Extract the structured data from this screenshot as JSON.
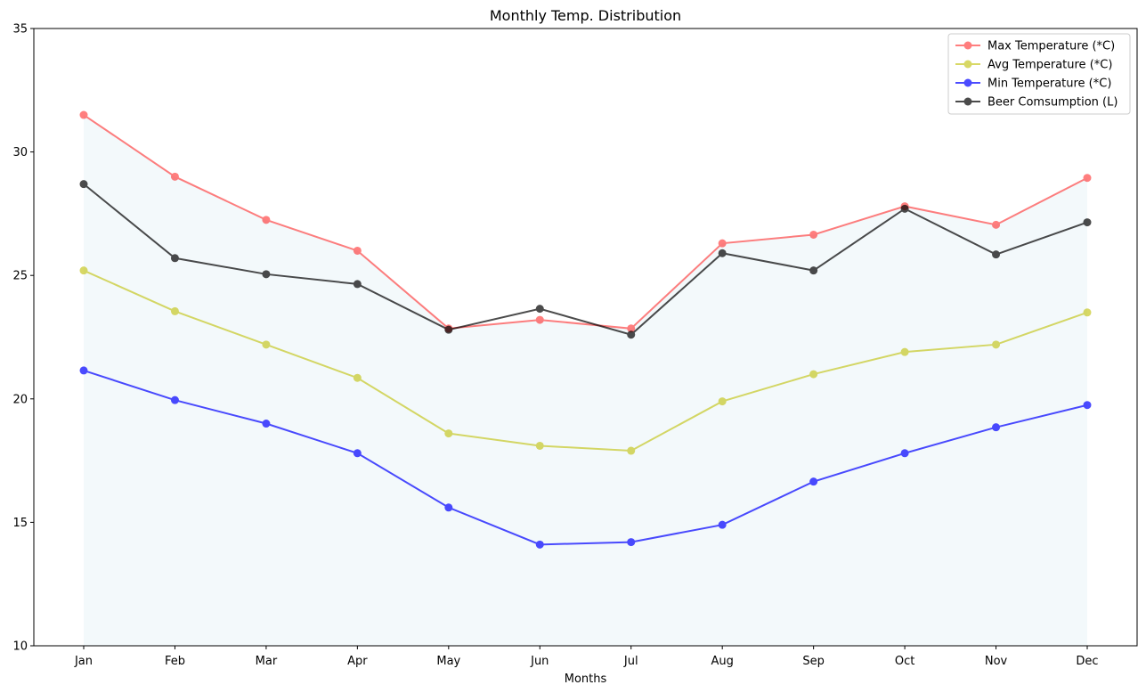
{
  "chart_data": {
    "type": "line",
    "title": "Monthly Temp. Distribution",
    "xlabel": "Months",
    "ylabel": "",
    "ylim": [
      10,
      35
    ],
    "yticks": [
      10,
      15,
      20,
      25,
      30,
      35
    ],
    "grid": false,
    "legend_position": "top-right",
    "categories": [
      "Jan",
      "Feb",
      "Mar",
      "Apr",
      "May",
      "Jun",
      "Jul",
      "Aug",
      "Sep",
      "Oct",
      "Nov",
      "Dec"
    ],
    "fill_between": {
      "from": 10,
      "to_series": "Max Temperature (*C)",
      "color": "#add8e6",
      "opacity": 0.15
    },
    "series": [
      {
        "name": "Max Temperature (*C)",
        "color": "#ff0000",
        "opacity": 0.5,
        "values": [
          31.5,
          29.0,
          27.25,
          26.0,
          22.85,
          23.2,
          22.85,
          26.3,
          26.65,
          27.8,
          27.05,
          28.95
        ]
      },
      {
        "name": "Avg Temperature (*C)",
        "color": "#bfbf00",
        "opacity": 0.6,
        "values": [
          25.2,
          23.55,
          22.2,
          20.85,
          18.6,
          18.1,
          17.9,
          19.9,
          21.0,
          21.9,
          22.2,
          23.5
        ]
      },
      {
        "name": "Min Temperature (*C)",
        "color": "#0000ff",
        "opacity": 0.7,
        "values": [
          21.15,
          19.95,
          19.0,
          17.8,
          15.6,
          14.1,
          14.2,
          14.9,
          16.65,
          17.8,
          18.85,
          19.75
        ]
      },
      {
        "name": "Beer Comsumption (L)",
        "color": "#000000",
        "opacity": 0.7,
        "values": [
          28.7,
          25.7,
          25.05,
          24.65,
          22.8,
          23.65,
          22.6,
          25.9,
          25.2,
          27.7,
          25.85,
          27.15
        ]
      }
    ]
  }
}
